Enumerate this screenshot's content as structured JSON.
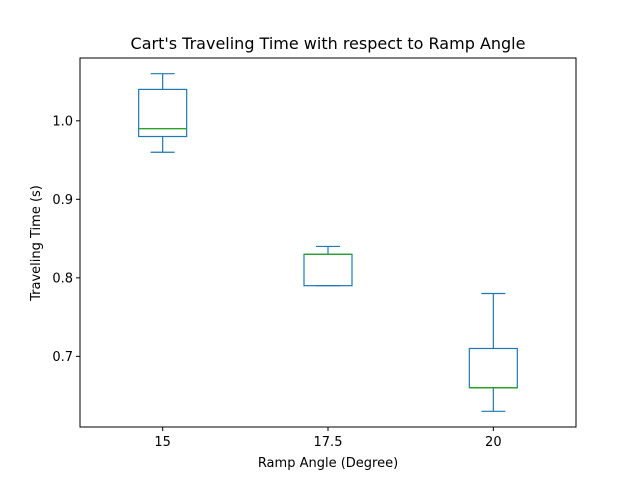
{
  "chart_data": {
    "type": "box",
    "title": "Cart's Traveling Time with respect to Ramp Angle",
    "xlabel": "Ramp Angle (Degree)",
    "ylabel": "Traveling Time (s)",
    "ylim": [
      0.61,
      1.08
    ],
    "yticks": [
      0.7,
      0.8,
      0.9,
      1.0
    ],
    "ytick_labels": [
      "0.7",
      "0.8",
      "0.9",
      "1.0"
    ],
    "categories": [
      "15",
      "17.5",
      "20"
    ],
    "boxes": [
      {
        "category": "15",
        "whisker_low": 0.96,
        "q1": 0.98,
        "median": 0.99,
        "q3": 1.04,
        "whisker_high": 1.06
      },
      {
        "category": "17.5",
        "whisker_low": 0.79,
        "q1": 0.79,
        "median": 0.83,
        "q3": 0.83,
        "whisker_high": 0.84
      },
      {
        "category": "20",
        "whisker_low": 0.63,
        "q1": 0.66,
        "median": 0.66,
        "q3": 0.71,
        "whisker_high": 0.78
      }
    ],
    "box_color": "#1f77b4",
    "median_color": "#2ca02c",
    "grid": false,
    "legend": "none"
  }
}
